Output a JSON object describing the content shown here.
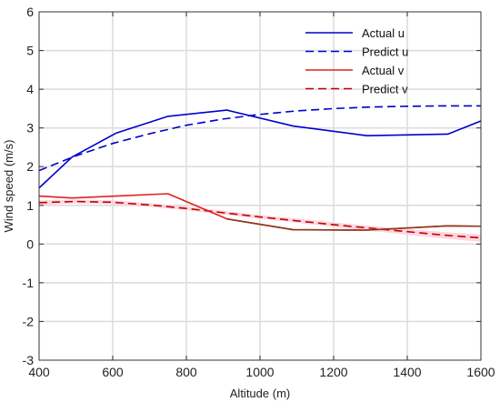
{
  "chart_data": {
    "type": "line",
    "title": "",
    "xlabel": "Altitude (m)",
    "ylabel": "Wind speed (m/s)",
    "xlim": [
      400,
      1600
    ],
    "ylim": [
      -3,
      6
    ],
    "xticks": [
      400,
      600,
      800,
      1000,
      1200,
      1400,
      1600
    ],
    "yticks": [
      -3,
      -2,
      -1,
      0,
      1,
      2,
      3,
      4,
      5,
      6
    ],
    "grid": true,
    "legend_position": "top-right",
    "series": [
      {
        "name": "Actual u",
        "color": "#0000cc",
        "style": "solid",
        "x": [
          400,
          490,
          610,
          750,
          910,
          1090,
          1290,
          1510,
          1600
        ],
        "y": [
          1.45,
          2.25,
          2.87,
          3.3,
          3.46,
          3.05,
          2.8,
          2.84,
          3.18
        ]
      },
      {
        "name": "Predict u",
        "color": "#0000cc",
        "style": "dashed",
        "x": [
          400,
          500,
          600,
          700,
          800,
          900,
          1000,
          1100,
          1200,
          1300,
          1400,
          1500,
          1600
        ],
        "y": [
          1.9,
          2.28,
          2.6,
          2.85,
          3.07,
          3.23,
          3.35,
          3.44,
          3.5,
          3.54,
          3.56,
          3.57,
          3.57
        ]
      },
      {
        "name": "Actual v",
        "color": "#e02020",
        "style": "solid",
        "x": [
          400,
          490,
          610,
          750,
          910,
          1090,
          1290,
          1510,
          1600
        ],
        "y": [
          1.24,
          1.19,
          1.24,
          1.3,
          0.65,
          0.37,
          0.36,
          0.47,
          0.46
        ]
      },
      {
        "name": "Predict v",
        "color": "#c00000",
        "style": "dashed",
        "x": [
          400,
          500,
          600,
          700,
          800,
          900,
          1000,
          1100,
          1200,
          1300,
          1400,
          1500,
          1600
        ],
        "y": [
          1.07,
          1.1,
          1.08,
          1.01,
          0.92,
          0.81,
          0.7,
          0.6,
          0.5,
          0.41,
          0.32,
          0.23,
          0.16
        ]
      }
    ],
    "band": {
      "color": "#ffc8d4",
      "x": [
        400,
        500,
        600,
        700,
        800,
        900,
        1000,
        1100,
        1200,
        1300,
        1400,
        1500,
        1600
      ],
      "lower": [
        1.01,
        1.05,
        1.03,
        0.96,
        0.87,
        0.76,
        0.65,
        0.55,
        0.44,
        0.34,
        0.24,
        0.14,
        0.06
      ],
      "upper": [
        1.13,
        1.15,
        1.13,
        1.06,
        0.97,
        0.86,
        0.75,
        0.66,
        0.56,
        0.47,
        0.39,
        0.31,
        0.25
      ]
    },
    "overlap_color": "#8b3a1a"
  }
}
